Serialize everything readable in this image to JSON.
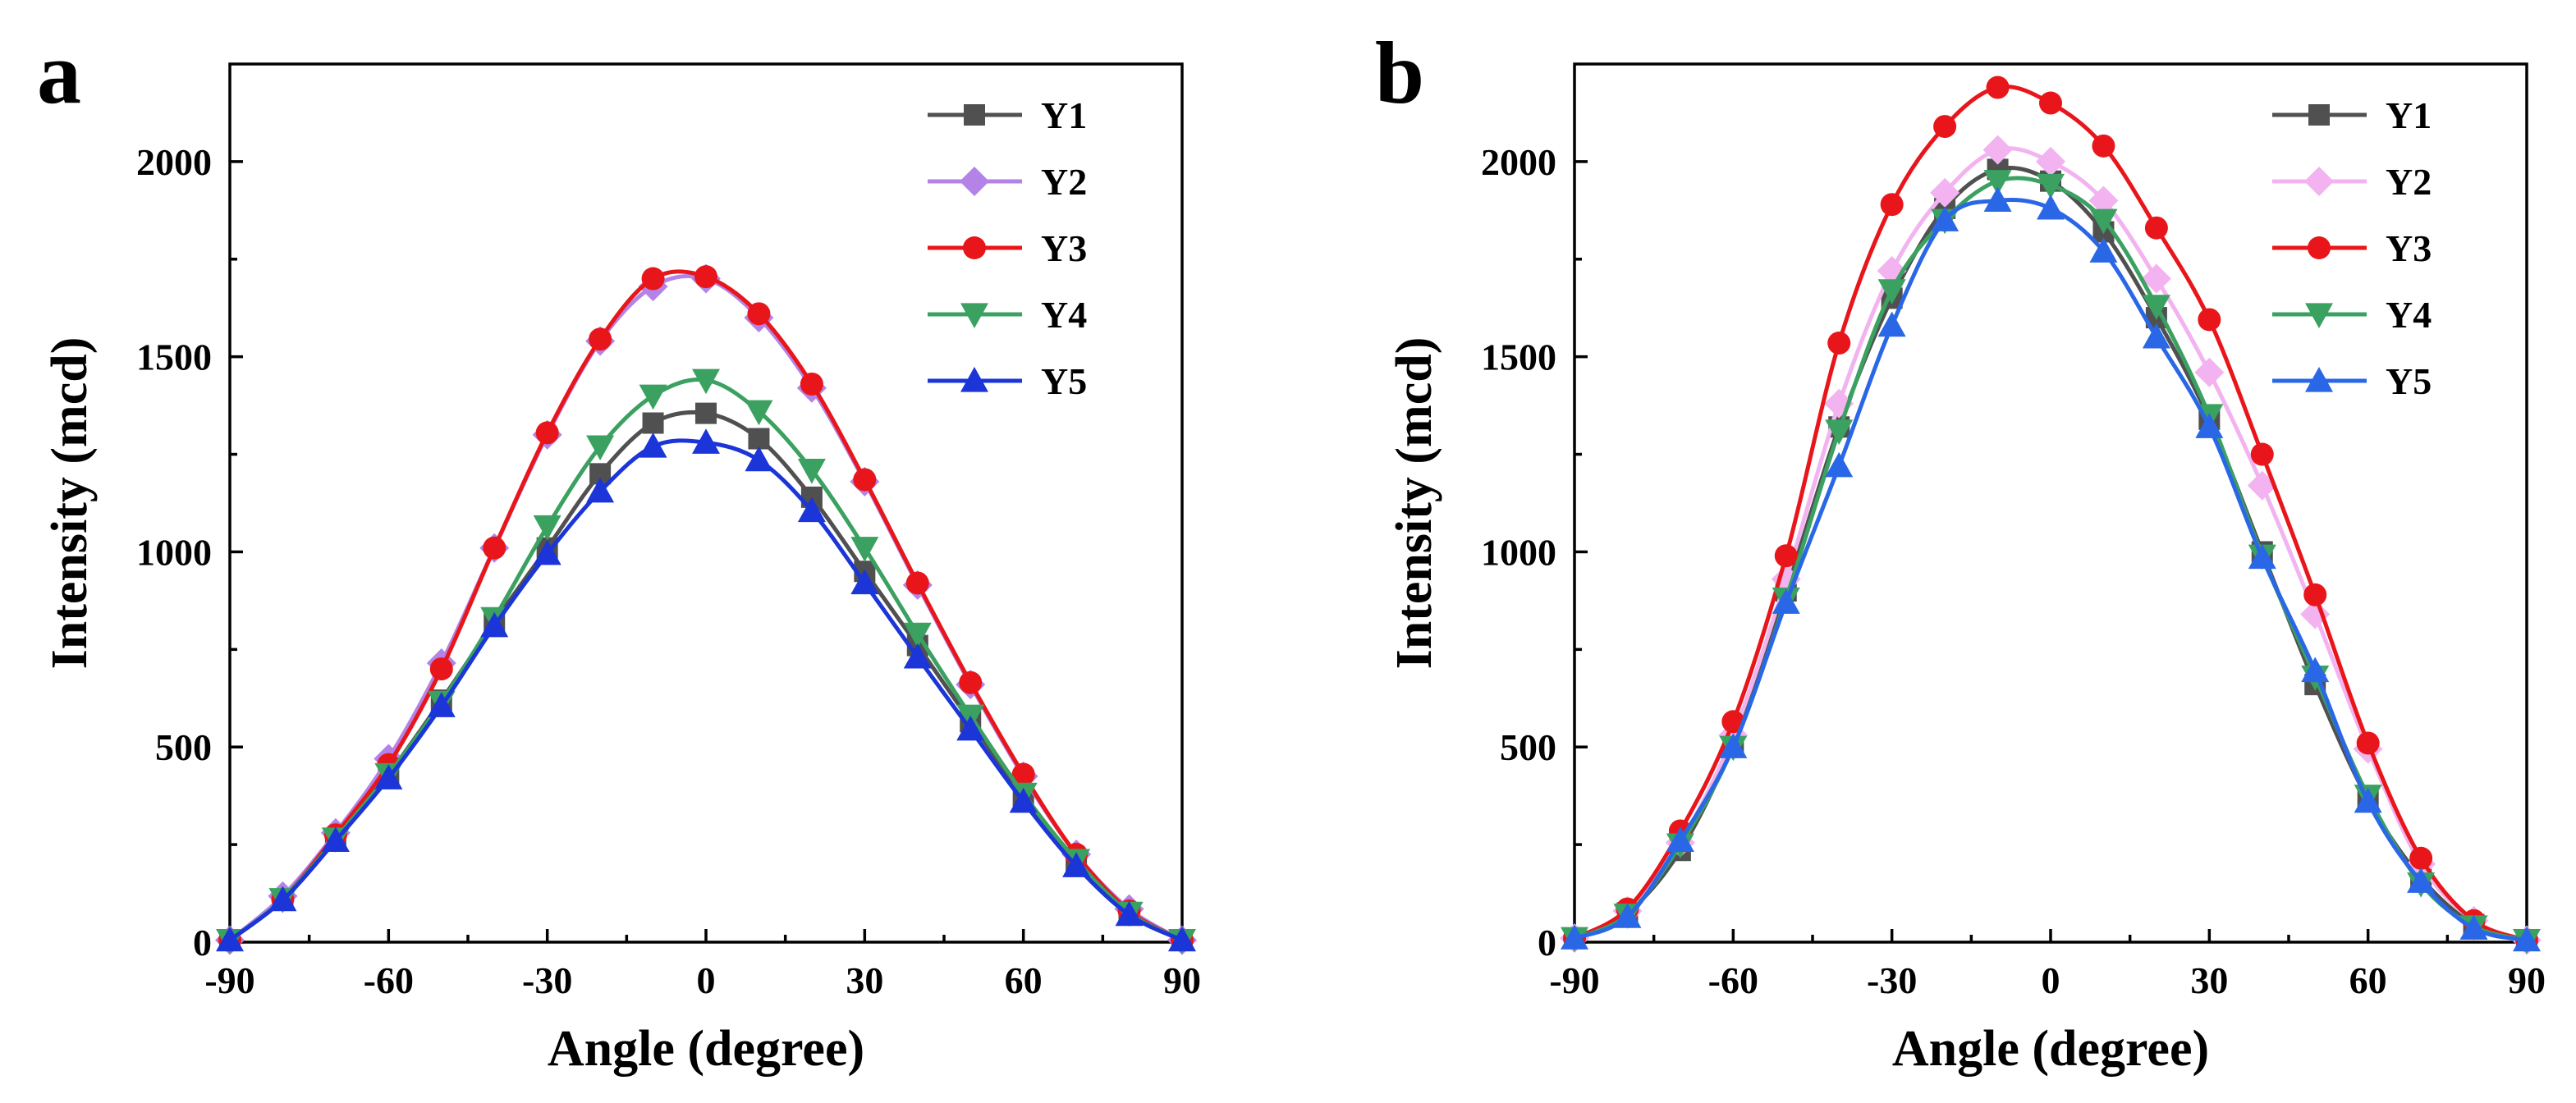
{
  "chart_data": [
    {
      "type": "line",
      "panel": "a",
      "xlabel": "Angle (degree)",
      "ylabel": "Intensity (mcd)",
      "xlim": [
        -90,
        90
      ],
      "ylim": [
        0,
        2250
      ],
      "xticks": [
        -90,
        -60,
        -30,
        0,
        30,
        60,
        90
      ],
      "yticks": [
        0,
        500,
        1000,
        1500,
        2000
      ],
      "legend_position": "top-right",
      "x": [
        -90,
        -80,
        -70,
        -60,
        -50,
        -40,
        -30,
        -20,
        -10,
        0,
        10,
        20,
        30,
        40,
        50,
        60,
        70,
        80,
        90
      ],
      "series": [
        {
          "name": "Y1",
          "color": "#505050",
          "marker": "square",
          "values": [
            5,
            110,
            265,
            430,
            620,
            820,
            1010,
            1200,
            1330,
            1355,
            1290,
            1140,
            950,
            760,
            565,
            375,
            205,
            75,
            5
          ]
        },
        {
          "name": "Y2",
          "color": "#b483e8",
          "marker": "diamond",
          "values": [
            5,
            118,
            280,
            470,
            715,
            1010,
            1300,
            1540,
            1680,
            1700,
            1600,
            1420,
            1180,
            915,
            660,
            425,
            225,
            85,
            5
          ]
        },
        {
          "name": "Y3",
          "color": "#e8161a",
          "marker": "circle",
          "values": [
            5,
            110,
            275,
            455,
            700,
            1010,
            1305,
            1545,
            1700,
            1705,
            1610,
            1430,
            1185,
            920,
            665,
            430,
            225,
            80,
            5
          ]
        },
        {
          "name": "Y4",
          "color": "#3aa160",
          "marker": "triangle-down",
          "values": [
            5,
            110,
            265,
            430,
            615,
            830,
            1065,
            1270,
            1400,
            1440,
            1360,
            1210,
            1010,
            790,
            580,
            380,
            210,
            75,
            5
          ]
        },
        {
          "name": "Y5",
          "color": "#1b35d8",
          "marker": "triangle-up",
          "values": [
            5,
            108,
            260,
            420,
            605,
            810,
            995,
            1155,
            1270,
            1280,
            1235,
            1105,
            920,
            730,
            545,
            360,
            195,
            70,
            5
          ]
        }
      ]
    },
    {
      "type": "line",
      "panel": "b",
      "xlabel": "Angle (degree)",
      "ylabel": "Intensity (mcd)",
      "xlim": [
        -90,
        90
      ],
      "ylim": [
        0,
        2250
      ],
      "xticks": [
        -90,
        -60,
        -30,
        0,
        30,
        60,
        90
      ],
      "yticks": [
        0,
        500,
        1000,
        1500,
        2000
      ],
      "legend_position": "top-right",
      "x": [
        -90,
        -80,
        -70,
        -60,
        -50,
        -40,
        -30,
        -20,
        -10,
        0,
        10,
        20,
        30,
        40,
        50,
        60,
        70,
        80,
        90
      ],
      "series": [
        {
          "name": "Y1",
          "color": "#505050",
          "marker": "square",
          "values": [
            10,
            75,
            235,
            510,
            900,
            1320,
            1650,
            1880,
            1980,
            1950,
            1820,
            1600,
            1340,
            1000,
            660,
            365,
            165,
            45,
            5
          ]
        },
        {
          "name": "Y2",
          "color": "#f2b3f0",
          "marker": "diamond",
          "values": [
            10,
            80,
            255,
            530,
            930,
            1380,
            1720,
            1920,
            2030,
            2000,
            1900,
            1700,
            1460,
            1170,
            840,
            495,
            200,
            55,
            5
          ]
        },
        {
          "name": "Y3",
          "color": "#e8161a",
          "marker": "circle",
          "values": [
            10,
            85,
            285,
            565,
            990,
            1535,
            1890,
            2090,
            2190,
            2150,
            2040,
            1830,
            1595,
            1250,
            890,
            510,
            215,
            55,
            5
          ]
        },
        {
          "name": "Y4",
          "color": "#3aa160",
          "marker": "triangle-down",
          "values": [
            10,
            70,
            250,
            500,
            880,
            1310,
            1670,
            1850,
            1950,
            1940,
            1850,
            1630,
            1350,
            990,
            680,
            375,
            150,
            40,
            5
          ]
        },
        {
          "name": "Y5",
          "color": "#2a67e6",
          "marker": "triangle-up",
          "values": [
            10,
            65,
            260,
            500,
            870,
            1220,
            1580,
            1850,
            1900,
            1880,
            1770,
            1550,
            1320,
            985,
            695,
            360,
            155,
            35,
            5
          ]
        }
      ]
    }
  ],
  "panel_labels": [
    "a",
    "b"
  ]
}
